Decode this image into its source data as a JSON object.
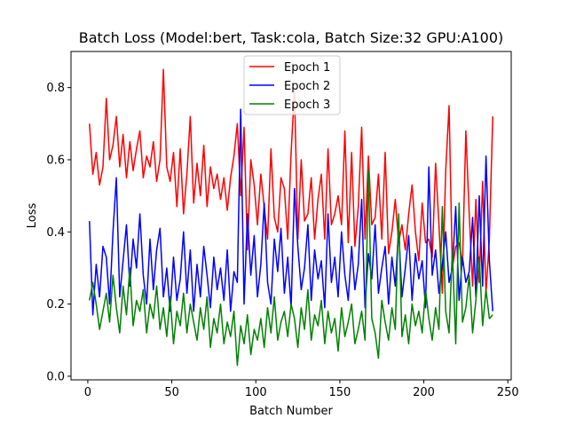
{
  "chart_data": {
    "type": "line",
    "title": "Batch Loss (Model:bert, Task:cola, Batch Size:32 GPU:A100)",
    "xlabel": "Batch Number",
    "ylabel": "Loss",
    "xlim": [
      -10,
      252
    ],
    "ylim": [
      -0.01,
      0.9
    ],
    "xticks": [
      0,
      50,
      100,
      150,
      200,
      250
    ],
    "yticks": [
      0.0,
      0.2,
      0.4,
      0.6,
      0.8
    ],
    "grid": false,
    "legend_position": "top-center",
    "series": [
      {
        "name": "Epoch 1",
        "color": "#ff0000",
        "x": [
          1,
          3,
          5,
          7,
          9,
          11,
          13,
          15,
          17,
          19,
          21,
          23,
          25,
          27,
          29,
          31,
          33,
          35,
          37,
          39,
          41,
          43,
          45,
          47,
          49,
          51,
          53,
          55,
          57,
          59,
          61,
          63,
          65,
          67,
          69,
          71,
          73,
          75,
          77,
          79,
          81,
          83,
          85,
          87,
          89,
          91,
          93,
          95,
          97,
          99,
          101,
          103,
          105,
          107,
          109,
          111,
          113,
          115,
          117,
          119,
          121,
          123,
          125,
          127,
          129,
          131,
          133,
          135,
          137,
          139,
          141,
          143,
          145,
          147,
          149,
          151,
          153,
          155,
          157,
          159,
          161,
          163,
          165,
          167,
          169,
          171,
          173,
          175,
          177,
          179,
          181,
          183,
          185,
          187,
          189,
          191,
          193,
          195,
          197,
          199,
          201,
          203,
          205,
          207,
          209,
          211,
          213,
          215,
          217,
          219,
          221,
          223,
          225,
          227,
          229,
          231,
          233,
          235,
          237,
          239,
          241
        ],
        "y": [
          0.7,
          0.56,
          0.62,
          0.53,
          0.58,
          0.77,
          0.6,
          0.64,
          0.72,
          0.58,
          0.67,
          0.55,
          0.65,
          0.57,
          0.63,
          0.68,
          0.55,
          0.61,
          0.58,
          0.65,
          0.54,
          0.6,
          0.85,
          0.58,
          0.54,
          0.62,
          0.47,
          0.63,
          0.45,
          0.56,
          0.72,
          0.48,
          0.59,
          0.5,
          0.64,
          0.47,
          0.58,
          0.52,
          0.56,
          0.49,
          0.55,
          0.46,
          0.55,
          0.61,
          0.7,
          0.5,
          0.69,
          0.35,
          0.6,
          0.53,
          0.42,
          0.56,
          0.47,
          0.38,
          0.63,
          0.44,
          0.4,
          0.55,
          0.52,
          0.38,
          0.62,
          0.79,
          0.38,
          0.6,
          0.43,
          0.45,
          0.55,
          0.38,
          0.49,
          0.56,
          0.38,
          0.63,
          0.42,
          0.45,
          0.5,
          0.42,
          0.68,
          0.37,
          0.62,
          0.36,
          0.47,
          0.69,
          0.38,
          0.61,
          0.42,
          0.44,
          0.56,
          0.38,
          0.62,
          0.34,
          0.4,
          0.49,
          0.37,
          0.42,
          0.35,
          0.45,
          0.53,
          0.4,
          0.32,
          0.48,
          0.37,
          0.38,
          0.33,
          0.59,
          0.42,
          0.23,
          0.57,
          0.75,
          0.3,
          0.36,
          0.37,
          0.31,
          0.68,
          0.45,
          0.25,
          0.49,
          0.26,
          0.54,
          0.23,
          0.38,
          0.72
        ]
      },
      {
        "name": "Epoch 2",
        "color": "#0000ff",
        "x": [
          1,
          3,
          5,
          7,
          9,
          11,
          13,
          15,
          17,
          19,
          21,
          23,
          25,
          27,
          29,
          31,
          33,
          35,
          37,
          39,
          41,
          43,
          45,
          47,
          49,
          51,
          53,
          55,
          57,
          59,
          61,
          63,
          65,
          67,
          69,
          71,
          73,
          75,
          77,
          79,
          81,
          83,
          85,
          87,
          89,
          91,
          93,
          95,
          97,
          99,
          101,
          103,
          105,
          107,
          109,
          111,
          113,
          115,
          117,
          119,
          121,
          123,
          125,
          127,
          129,
          131,
          133,
          135,
          137,
          139,
          141,
          143,
          145,
          147,
          149,
          151,
          153,
          155,
          157,
          159,
          161,
          163,
          165,
          167,
          169,
          171,
          173,
          175,
          177,
          179,
          181,
          183,
          185,
          187,
          189,
          191,
          193,
          195,
          197,
          199,
          201,
          203,
          205,
          207,
          209,
          211,
          213,
          215,
          217,
          219,
          221,
          223,
          225,
          227,
          229,
          231,
          233,
          235,
          237,
          239,
          241
        ],
        "y": [
          0.43,
          0.17,
          0.31,
          0.22,
          0.36,
          0.33,
          0.2,
          0.4,
          0.55,
          0.22,
          0.32,
          0.42,
          0.25,
          0.38,
          0.3,
          0.45,
          0.28,
          0.2,
          0.38,
          0.24,
          0.35,
          0.41,
          0.22,
          0.3,
          0.18,
          0.33,
          0.21,
          0.27,
          0.4,
          0.23,
          0.35,
          0.18,
          0.31,
          0.22,
          0.36,
          0.28,
          0.19,
          0.33,
          0.24,
          0.3,
          0.21,
          0.35,
          0.18,
          0.29,
          0.26,
          0.74,
          0.2,
          0.45,
          0.28,
          0.39,
          0.22,
          0.31,
          0.48,
          0.26,
          0.2,
          0.38,
          0.29,
          0.41,
          0.23,
          0.33,
          0.19,
          0.52,
          0.36,
          0.24,
          0.3,
          0.42,
          0.21,
          0.35,
          0.27,
          0.32,
          0.19,
          0.45,
          0.26,
          0.33,
          0.22,
          0.4,
          0.28,
          0.21,
          0.36,
          0.24,
          0.31,
          0.49,
          0.19,
          0.34,
          0.27,
          0.42,
          0.23,
          0.3,
          0.36,
          0.2,
          0.33,
          0.25,
          0.41,
          0.22,
          0.3,
          0.39,
          0.21,
          0.34,
          0.27,
          0.32,
          0.19,
          0.58,
          0.28,
          0.35,
          0.23,
          0.31,
          0.4,
          0.26,
          0.3,
          0.47,
          0.21,
          0.33,
          0.26,
          0.29,
          0.44,
          0.22,
          0.5,
          0.25,
          0.61,
          0.32,
          0.18
        ]
      },
      {
        "name": "Epoch 3",
        "color": "#008000",
        "x": [
          1,
          3,
          5,
          7,
          9,
          11,
          13,
          15,
          17,
          19,
          21,
          23,
          25,
          27,
          29,
          31,
          33,
          35,
          37,
          39,
          41,
          43,
          45,
          47,
          49,
          51,
          53,
          55,
          57,
          59,
          61,
          63,
          65,
          67,
          69,
          71,
          73,
          75,
          77,
          79,
          81,
          83,
          85,
          87,
          89,
          91,
          93,
          95,
          97,
          99,
          101,
          103,
          105,
          107,
          109,
          111,
          113,
          115,
          117,
          119,
          121,
          123,
          125,
          127,
          129,
          131,
          133,
          135,
          137,
          139,
          141,
          143,
          145,
          147,
          149,
          151,
          153,
          155,
          157,
          159,
          161,
          163,
          165,
          167,
          169,
          171,
          173,
          175,
          177,
          179,
          181,
          183,
          185,
          187,
          189,
          191,
          193,
          195,
          197,
          199,
          201,
          203,
          205,
          207,
          209,
          211,
          213,
          215,
          217,
          219,
          221,
          223,
          225,
          227,
          229,
          231,
          233,
          235,
          237,
          239,
          241
        ],
        "y": [
          0.21,
          0.26,
          0.2,
          0.13,
          0.18,
          0.23,
          0.15,
          0.28,
          0.19,
          0.12,
          0.25,
          0.17,
          0.3,
          0.14,
          0.21,
          0.18,
          0.24,
          0.12,
          0.2,
          0.16,
          0.25,
          0.13,
          0.19,
          0.11,
          0.22,
          0.09,
          0.18,
          0.14,
          0.23,
          0.12,
          0.2,
          0.15,
          0.1,
          0.19,
          0.13,
          0.22,
          0.08,
          0.16,
          0.12,
          0.2,
          0.09,
          0.15,
          0.11,
          0.18,
          0.03,
          0.14,
          0.09,
          0.17,
          0.06,
          0.13,
          0.1,
          0.16,
          0.08,
          0.19,
          0.12,
          0.22,
          0.1,
          0.15,
          0.18,
          0.11,
          0.2,
          0.16,
          0.08,
          0.19,
          0.13,
          0.24,
          0.1,
          0.17,
          0.14,
          0.21,
          0.09,
          0.18,
          0.12,
          0.16,
          0.07,
          0.19,
          0.11,
          0.15,
          0.2,
          0.09,
          0.13,
          0.18,
          0.1,
          0.57,
          0.16,
          0.12,
          0.05,
          0.21,
          0.15,
          0.1,
          0.19,
          0.13,
          0.45,
          0.11,
          0.17,
          0.09,
          0.2,
          0.14,
          0.18,
          0.12,
          0.24,
          0.16,
          0.1,
          0.19,
          0.13,
          0.47,
          0.18,
          0.12,
          0.35,
          0.09,
          0.48,
          0.15,
          0.19,
          0.28,
          0.12,
          0.21,
          0.33,
          0.14,
          0.24,
          0.16,
          0.17
        ]
      }
    ]
  }
}
